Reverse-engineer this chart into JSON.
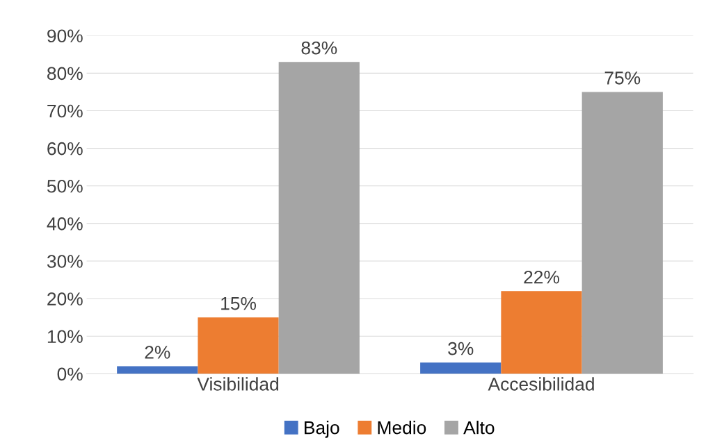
{
  "chart_data": {
    "type": "bar",
    "categories": [
      "Visibilidad",
      "Accesibilidad"
    ],
    "series": [
      {
        "name": "Bajo",
        "color": "#4472c4",
        "values": [
          2,
          3
        ],
        "value_labels": [
          "2%",
          "3%"
        ]
      },
      {
        "name": "Medio",
        "color": "#ed7d31",
        "values": [
          15,
          22
        ],
        "value_labels": [
          "15%",
          "22%"
        ]
      },
      {
        "name": "Alto",
        "color": "#a5a5a5",
        "values": [
          83,
          75
        ],
        "value_labels": [
          "83%",
          "75%"
        ]
      }
    ],
    "ylim": [
      0,
      90
    ],
    "yticks": [
      {
        "value": 0,
        "label": "0%"
      },
      {
        "value": 10,
        "label": "10%"
      },
      {
        "value": 20,
        "label": "20%"
      },
      {
        "value": 30,
        "label": "30%"
      },
      {
        "value": 40,
        "label": "40%"
      },
      {
        "value": 50,
        "label": "50%"
      },
      {
        "value": 60,
        "label": "60%"
      },
      {
        "value": 70,
        "label": "70%"
      },
      {
        "value": 80,
        "label": "80%"
      },
      {
        "value": 90,
        "label": "90%"
      }
    ],
    "grid": "y",
    "legend": "bottom"
  }
}
